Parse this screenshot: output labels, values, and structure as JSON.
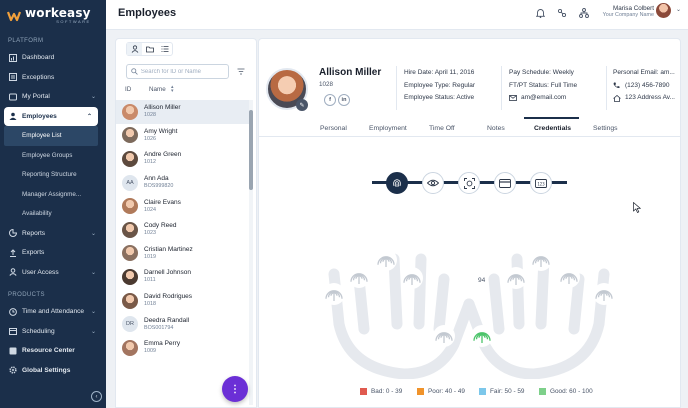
{
  "app": {
    "logo_text": "workeasy",
    "logo_sub": "SOFTWARE",
    "page_title": "Employees",
    "user_name": "Marisa Colbert",
    "user_company": "Your Company Name"
  },
  "sidebar": {
    "section_platform": "PLATFORM",
    "section_products": "PRODUCTS",
    "items": {
      "dashboard": "Dashboard",
      "exceptions": "Exceptions",
      "my_portal": "My Portal",
      "employees": "Employees",
      "reports": "Reports",
      "exports": "Exports",
      "user_access": "User Access",
      "time_attendance": "Time and Attendance",
      "scheduling": "Scheduling",
      "resource_center": "Resource Center",
      "global_settings": "Global Settings"
    },
    "sub_items": {
      "employee_list": "Employee List",
      "employee_groups": "Employee Groups",
      "reporting_structure": "Reporting Structure",
      "manager_assignments": "Manager Assignme...",
      "availability": "Availability"
    }
  },
  "list": {
    "search_placeholder": "Search for ID or Name",
    "col_id": "ID",
    "col_name": "Name",
    "employees": [
      {
        "name": "Allison Miller",
        "id": "1028",
        "initials": "",
        "color": "#c98a6a"
      },
      {
        "name": "Amy Wright",
        "id": "1026",
        "initials": "",
        "color": "#7d6a5c"
      },
      {
        "name": "Andre Green",
        "id": "1012",
        "initials": "",
        "color": "#5d4a3e"
      },
      {
        "name": "Ann Ada",
        "id": "BOS999820",
        "initials": "AA",
        "color": "#dfe6ee"
      },
      {
        "name": "Claire Evans",
        "id": "1024",
        "initials": "",
        "color": "#b07a5a"
      },
      {
        "name": "Cody Reed",
        "id": "1023",
        "initials": "",
        "color": "#6a5547"
      },
      {
        "name": "Cristian Martinez",
        "id": "1019",
        "initials": "",
        "color": "#8a7060"
      },
      {
        "name": "Darnell Johnson",
        "id": "1011",
        "initials": "",
        "color": "#4b3a30"
      },
      {
        "name": "David Rodrigues",
        "id": "1018",
        "initials": "",
        "color": "#7a5a48"
      },
      {
        "name": "Deedra Randall",
        "id": "BOS001794",
        "initials": "DR",
        "color": "#dfe6ee"
      },
      {
        "name": "Emma Perry",
        "id": "1009",
        "initials": "",
        "color": "#a37560"
      }
    ]
  },
  "profile": {
    "name": "Allison Miller",
    "id": "1028",
    "hire_date": "Hire Date: April 11, 2016",
    "employee_type": "Employee Type: Regular",
    "employee_status": "Employee Status: Active",
    "pay_schedule": "Pay Schedule: Weekly",
    "ft_pt_status": "FT/PT Status: Full Time",
    "email": "am@email.com",
    "personal_email": "Personal Email: am...",
    "phone": "(123) 456-7890",
    "address": "123 Address Av..."
  },
  "tabs": [
    "Personal",
    "Employment",
    "Time Off",
    "Notes",
    "Credentials",
    "Settings"
  ],
  "active_tab": "Credentials",
  "credentials": {
    "score": "94",
    "legend": [
      {
        "label": "Bad: 0 - 39",
        "color": "#e05a4f"
      },
      {
        "label": "Poor: 40 - 49",
        "color": "#f0932b"
      },
      {
        "label": "Fair: 50 - 59",
        "color": "#7cc7ea"
      },
      {
        "label": "Good: 60 - 100",
        "color": "#7ed08a"
      }
    ]
  },
  "colors": {
    "sidebar_bg": "#1b2f4a",
    "accent_purple": "#6b2fd6",
    "fingerprint_good": "#4cc46a",
    "hand_outline": "#e6e9ee"
  }
}
